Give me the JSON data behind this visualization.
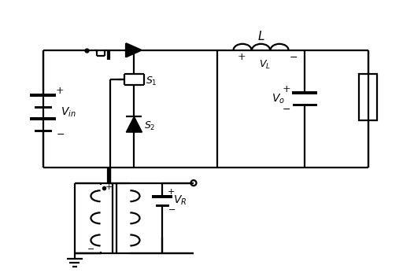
{
  "bg_color": "#ffffff",
  "line_color": "#000000",
  "lw": 1.6,
  "fig_width": 5.12,
  "fig_height": 3.56,
  "xlim": [
    0,
    10
  ],
  "ylim": [
    0,
    7
  ]
}
